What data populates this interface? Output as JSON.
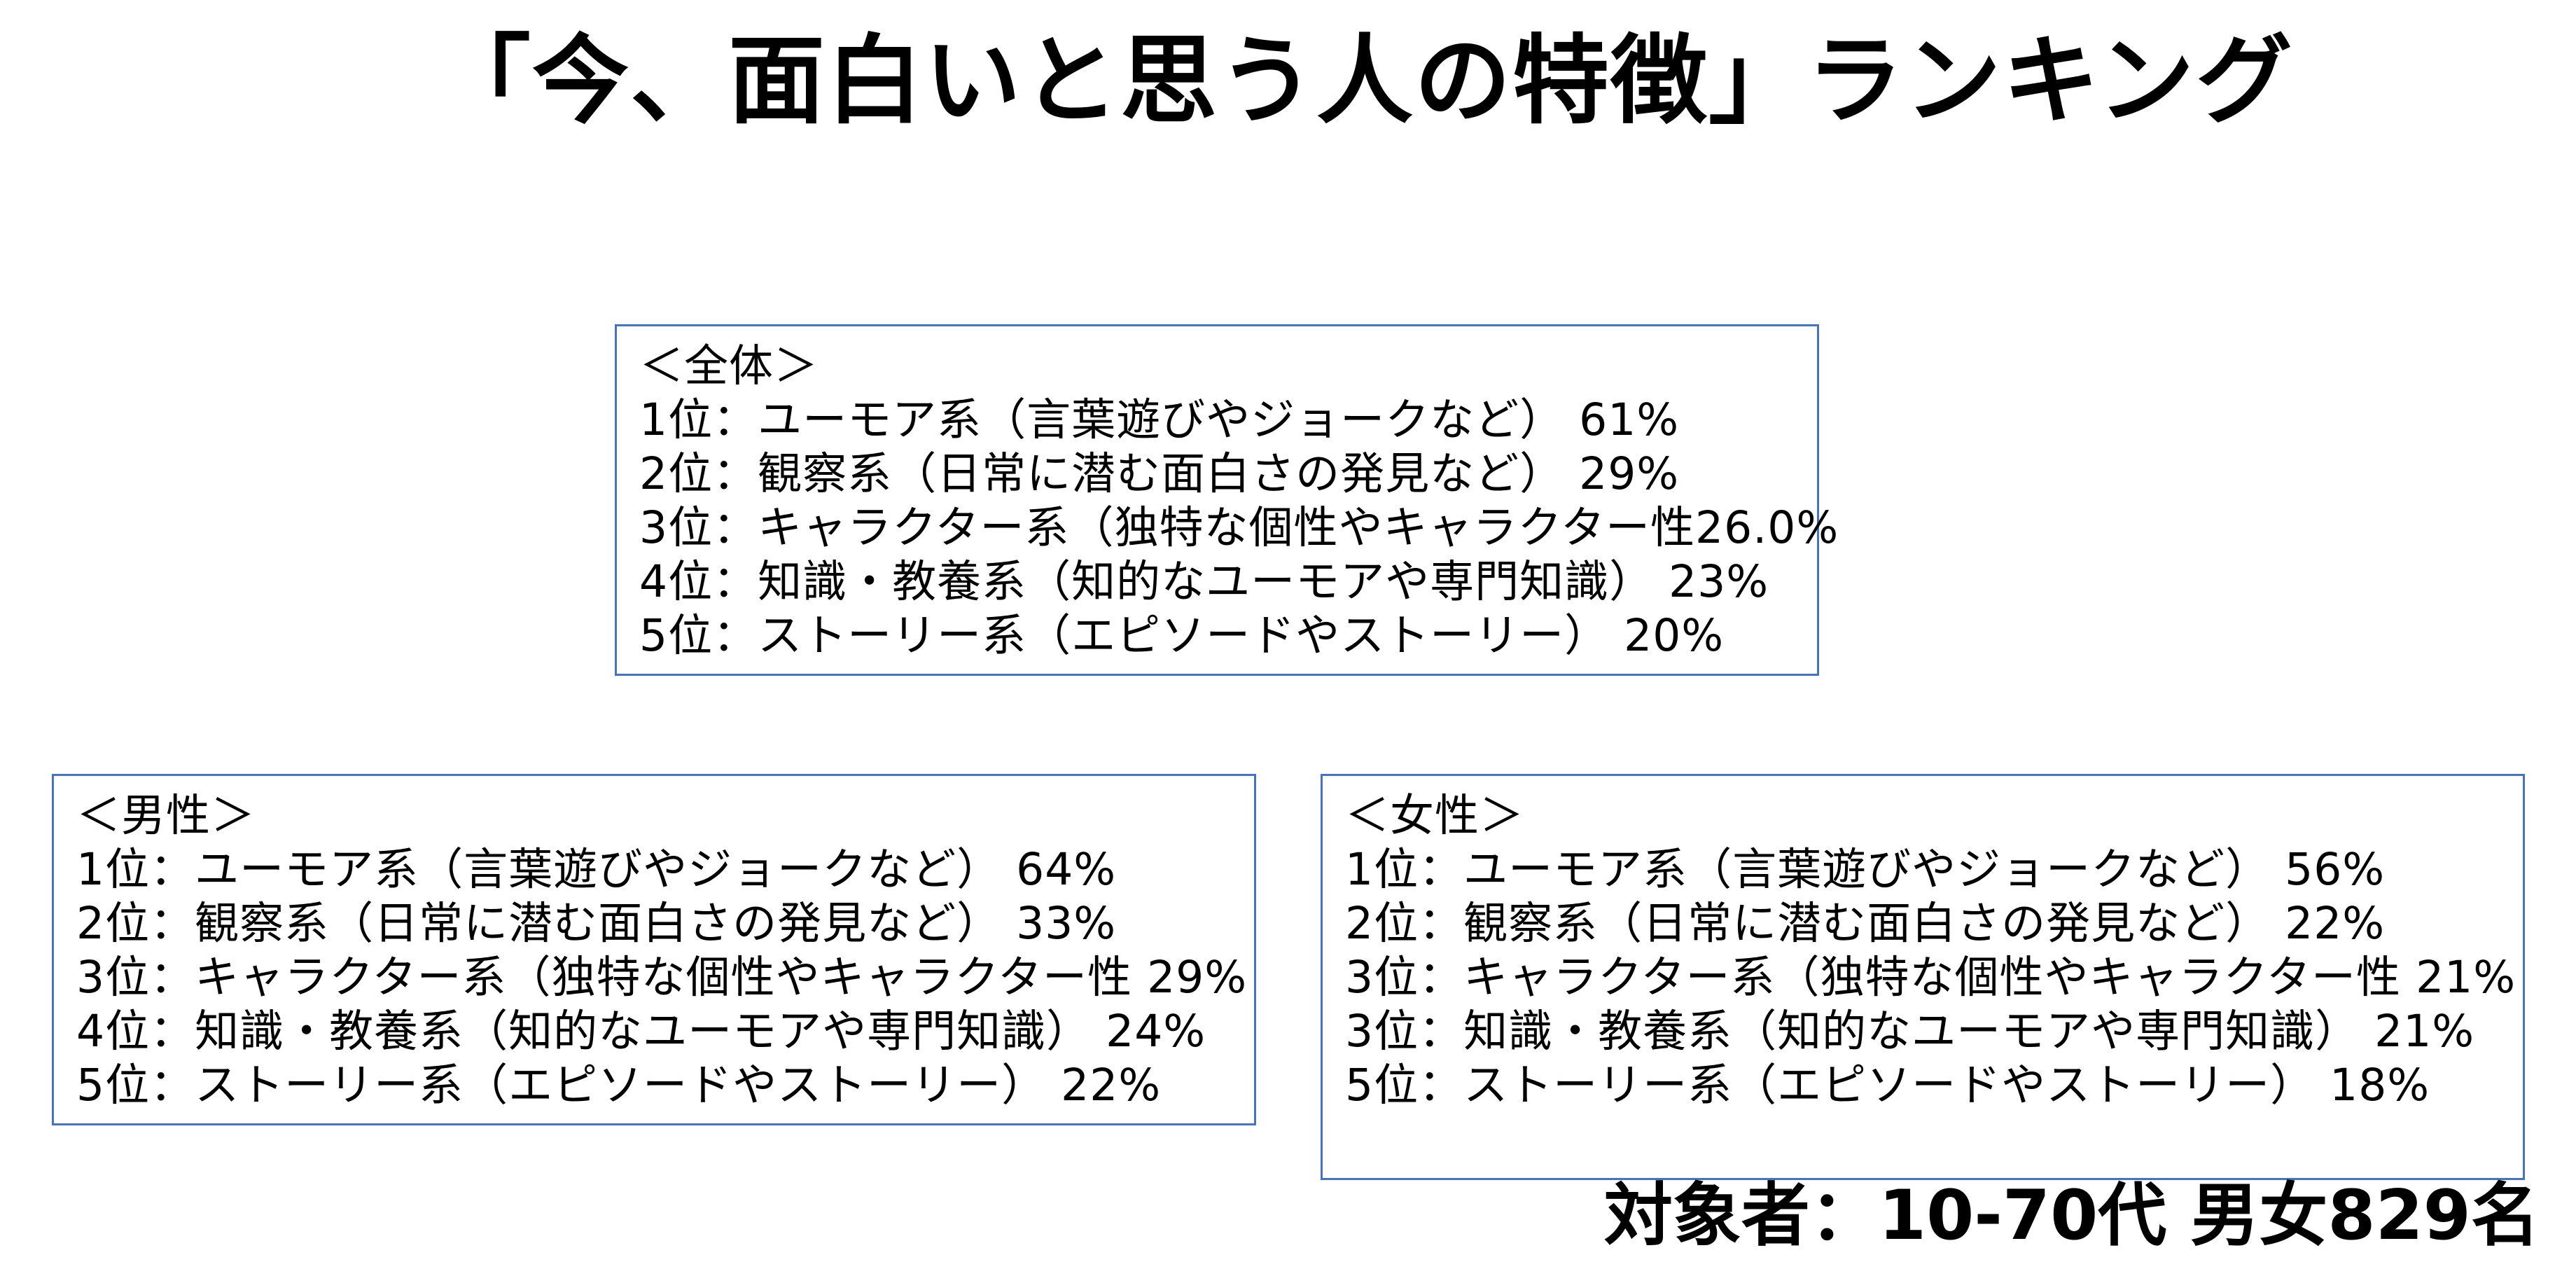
{
  "title": "「今、面白いと思う人の特徴」ランキング",
  "overall": {
    "heading": "＜全体＞",
    "items": [
      "1位：ユーモア系（言葉遊びやジョークなど） 61%",
      "2位：観察系（日常に潜む面白さの発見など） 29%",
      "3位：キャラクター系（独特な個性やキャラクター性26.0%",
      "4位：知識・教養系（知的なユーモアや専門知識） 23%",
      "5位：ストーリー系（エピソードやストーリー） 20%"
    ]
  },
  "male": {
    "heading": "＜男性＞",
    "items": [
      "1位：ユーモア系（言葉遊びやジョークなど） 64%",
      "2位：観察系（日常に潜む面白さの発見など） 33%",
      "3位：キャラクター系（独特な個性やキャラクター性 29%",
      "4位：知識・教養系（知的なユーモアや専門知識） 24%",
      "5位：ストーリー系（エピソードやストーリー） 22%"
    ]
  },
  "female": {
    "heading": "＜女性＞",
    "items": [
      "1位：ユーモア系（言葉遊びやジョークなど） 56%",
      "2位：観察系（日常に潜む面白さの発見など） 22%",
      "3位：キャラクター系（独特な個性やキャラクター性 21%",
      "3位：知識・教養系（知的なユーモアや専門知識） 21%",
      "5位：ストーリー系（エピソードやストーリー） 18%"
    ]
  },
  "footer": "対象者：10-70代 男女829名",
  "colors": {
    "box_border": "#4a73b3",
    "text": "#000000",
    "background": "#ffffff"
  }
}
